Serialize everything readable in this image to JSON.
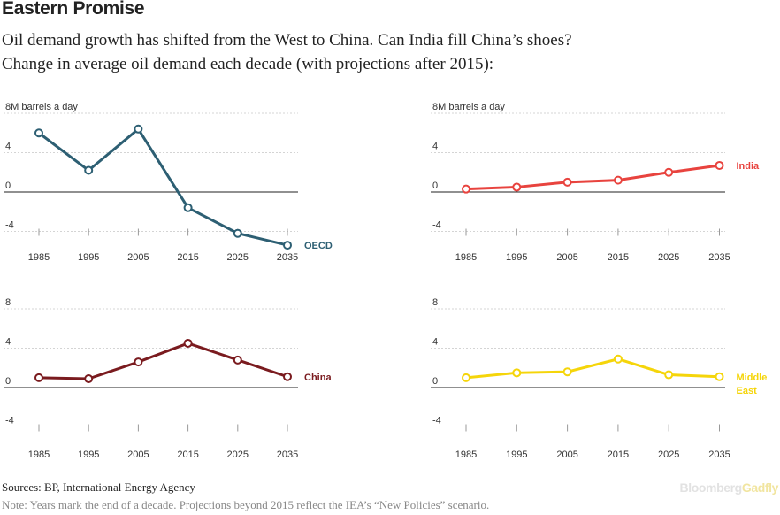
{
  "header": {
    "title": "Eastern Promise",
    "subtitle_line1": "Oil demand growth has shifted from the West to China. Can India fill China’s shoes?",
    "subtitle_line2": "Change in average oil demand each decade (with projections after 2015):"
  },
  "footer": {
    "sources": "Sources: BP, International Energy Agency",
    "note": "Note: Years mark the end of a decade. Projections beyond 2015 reflect the IEA’s “New Policies” scenario.",
    "logo_part1": "Bloomberg",
    "logo_part2": "Gadfly"
  },
  "chart_data": [
    {
      "type": "line",
      "x": [
        1985,
        1995,
        2005,
        2015,
        2025,
        2035
      ],
      "series": [
        {
          "name": "OECD",
          "color": "#2d5f73",
          "values": [
            6.0,
            2.2,
            6.4,
            -1.6,
            -4.2,
            -5.4
          ]
        }
      ],
      "ylabel": "8M barrels a day",
      "yticks": [
        "4",
        "0",
        "-4"
      ],
      "ylim": [
        -4,
        8
      ],
      "grid": true
    },
    {
      "type": "line",
      "x": [
        1985,
        1995,
        2005,
        2015,
        2025,
        2035
      ],
      "series": [
        {
          "name": "India",
          "color": "#e8433e",
          "values": [
            0.3,
            0.5,
            1.0,
            1.2,
            2.0,
            2.7
          ]
        }
      ],
      "ylabel": "8M barrels a day",
      "yticks": [
        "4",
        "0",
        "-4"
      ],
      "ylim": [
        -4,
        8
      ],
      "grid": true
    },
    {
      "type": "line",
      "x": [
        1985,
        1995,
        2005,
        2015,
        2025,
        2035
      ],
      "series": [
        {
          "name": "China",
          "color": "#7a1b1f",
          "values": [
            1.0,
            0.9,
            2.6,
            4.5,
            2.8,
            1.1
          ]
        }
      ],
      "ylabel": "",
      "yticks": [
        "8",
        "4",
        "0",
        "-4"
      ],
      "ylim": [
        -4,
        8
      ],
      "grid": true
    },
    {
      "type": "line",
      "x": [
        1985,
        1995,
        2005,
        2015,
        2025,
        2035
      ],
      "series": [
        {
          "name": "Middle East",
          "label_lines": [
            "Middle",
            "East"
          ],
          "color": "#f5d50a",
          "values": [
            1.0,
            1.5,
            1.6,
            2.9,
            1.3,
            1.1
          ]
        }
      ],
      "ylabel": "",
      "yticks": [
        "8",
        "4",
        "0",
        "-4"
      ],
      "ylim": [
        -4,
        8
      ],
      "grid": true
    }
  ]
}
